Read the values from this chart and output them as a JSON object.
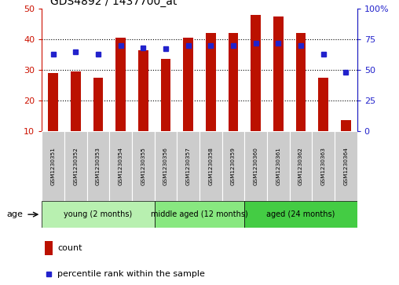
{
  "title": "GDS4892 / 1437700_at",
  "samples": [
    "GSM1230351",
    "GSM1230352",
    "GSM1230353",
    "GSM1230354",
    "GSM1230355",
    "GSM1230356",
    "GSM1230357",
    "GSM1230358",
    "GSM1230359",
    "GSM1230360",
    "GSM1230361",
    "GSM1230362",
    "GSM1230363",
    "GSM1230364"
  ],
  "counts": [
    29,
    29.5,
    27.5,
    40.5,
    36.5,
    33.5,
    40.5,
    42,
    42,
    48,
    47.5,
    42,
    27.5,
    13.5
  ],
  "percentile_rank": [
    63,
    65,
    63,
    70,
    68,
    67,
    70,
    70,
    70,
    72,
    72,
    70,
    63,
    48
  ],
  "ylim_left": [
    10,
    50
  ],
  "ylim_right": [
    0,
    100
  ],
  "yticks_left": [
    10,
    20,
    30,
    40,
    50
  ],
  "yticks_right": [
    0,
    25,
    50,
    75,
    100
  ],
  "bar_color": "#bb1100",
  "dot_color": "#2222cc",
  "bar_bottom": 10,
  "groups": [
    {
      "label": "young (2 months)",
      "start": 0,
      "end": 5
    },
    {
      "label": "middle aged (12 months)",
      "start": 5,
      "end": 9
    },
    {
      "label": "aged (24 months)",
      "start": 9,
      "end": 14
    }
  ],
  "group_colors": [
    "#b8f0b0",
    "#88e880",
    "#44cc44"
  ],
  "age_label": "age",
  "legend_count_label": "count",
  "legend_pct_label": "percentile rank within the sample",
  "left_axis_color": "#cc1100",
  "right_axis_color": "#2222cc",
  "bg_color": "#ffffff",
  "xtick_bg": "#cccccc",
  "grid_yticks": [
    20,
    30,
    40
  ]
}
